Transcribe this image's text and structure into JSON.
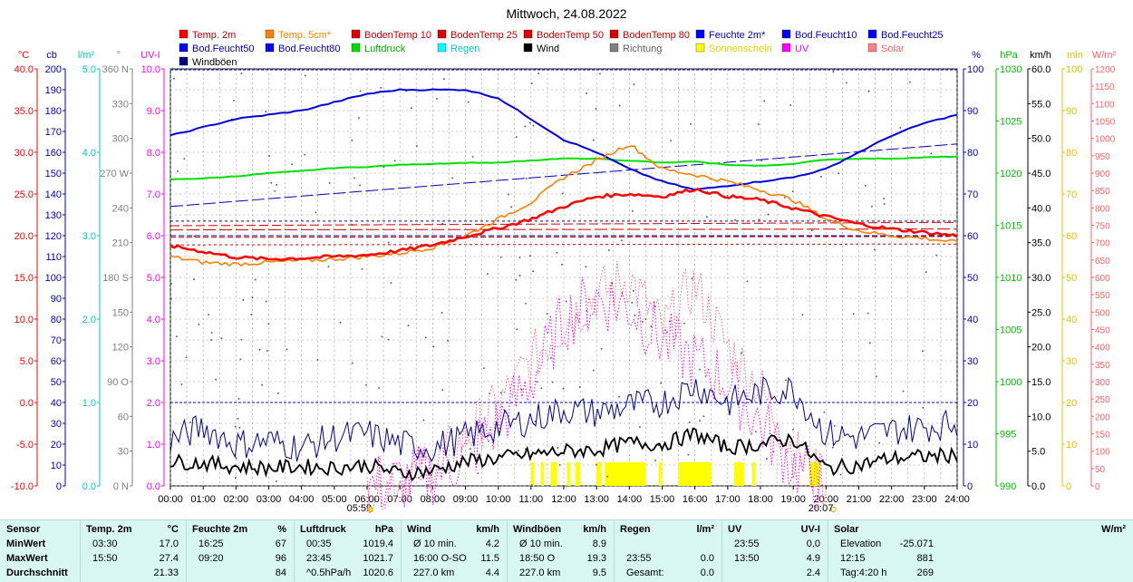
{
  "chart_data": {
    "type": "line",
    "title": "Mittwoch, 24.08.2022",
    "x_ticks": [
      "00:00",
      "01:00",
      "02:00",
      "03:00",
      "04:00",
      "05:00",
      "06:00",
      "07:00",
      "08:00",
      "09:00",
      "10:00",
      "11:00",
      "12:00",
      "13:00",
      "14:00",
      "15:00",
      "16:00",
      "17:00",
      "18:00",
      "19:00",
      "20:00",
      "21:00",
      "22:00",
      "23:00",
      "24:00"
    ],
    "sunrise": "05:59",
    "sunset": "20:07",
    "grid": true,
    "legend": [
      {
        "name": "Temp. 2m",
        "color": "#ff0000"
      },
      {
        "name": "Temp. 5cm*",
        "color": "#ff8000"
      },
      {
        "name": "BodenTemp 10",
        "color": "#e00000"
      },
      {
        "name": "BodenTemp 25",
        "color": "#e00000"
      },
      {
        "name": "BodenTemp 50",
        "color": "#e00000"
      },
      {
        "name": "BodenTemp 80",
        "color": "#e00000"
      },
      {
        "name": "Feuchte 2m*",
        "color": "#0000ff"
      },
      {
        "name": "Bod.Feucht10",
        "color": "#0000ff"
      },
      {
        "name": "Bod.Feucht25",
        "color": "#0000ff"
      },
      {
        "name": "Bod.Feucht50",
        "color": "#0000ff"
      },
      {
        "name": "Bod.Feucht80",
        "color": "#0000ff"
      },
      {
        "name": "Luftdruck",
        "color": "#00e000"
      },
      {
        "name": "Regen",
        "color": "#00ffff"
      },
      {
        "name": "Wind",
        "color": "#000000"
      },
      {
        "name": "Richtung",
        "color": "#808080"
      },
      {
        "name": "Sonnenschein",
        "color": "#ffff00"
      },
      {
        "name": "UV",
        "color": "#ff00ff"
      },
      {
        "name": "Solar",
        "color": "#ff8080"
      },
      {
        "name": "Windböen",
        "color": "#000080"
      }
    ],
    "axes_left": [
      {
        "unit": "°C",
        "color": "#ff0000",
        "ticks": [
          "40.0",
          "35.0",
          "30.0",
          "25.0",
          "20.0",
          "15.0",
          "10.0",
          "5.0",
          "0.0",
          "-5.0",
          "-10.0"
        ]
      },
      {
        "unit": "cb",
        "color": "#0000c0",
        "ticks": [
          "200",
          "190",
          "180",
          "170",
          "160",
          "150",
          "140",
          "130",
          "120",
          "110",
          "100",
          "90",
          "80",
          "70",
          "60",
          "50",
          "40",
          "30",
          "20",
          "10",
          "0"
        ]
      },
      {
        "unit": "l/m²",
        "color": "#00c8c8",
        "ticks": [
          "5.0",
          "4.0",
          "3.0",
          "2.0",
          "1.0",
          "0.0"
        ]
      },
      {
        "unit": "°",
        "color": "#808080",
        "ticks": [
          "360 N",
          "330",
          "300",
          "270 W",
          "240",
          "210",
          "180 S",
          "150",
          "120",
          "90  O",
          "60",
          "30",
          "0  N"
        ]
      },
      {
        "unit": "UV-I",
        "color": "#ff00ff",
        "ticks": [
          "10.0",
          "9.0",
          "8.0",
          "7.0",
          "6.0",
          "5.0",
          "4.0",
          "3.0",
          "2.0",
          "1.0",
          "0.0"
        ]
      }
    ],
    "axes_right": [
      {
        "unit": "%",
        "color": "#0000c0",
        "ticks": [
          "100",
          "90",
          "80",
          "70",
          "60",
          "50",
          "40",
          "30",
          "20",
          "10",
          "0"
        ]
      },
      {
        "unit": "hPa",
        "color": "#00c000",
        "ticks": [
          "1030",
          "1025",
          "1020",
          "1015",
          "1010",
          "1005",
          "1000",
          "995",
          "990"
        ]
      },
      {
        "unit": "km/h",
        "color": "#000000",
        "ticks": [
          "60.0",
          "55.0",
          "50.0",
          "45.0",
          "40.0",
          "35.0",
          "30.0",
          "25.0",
          "20.0",
          "15.0",
          "10.0",
          "5.0",
          "0.0"
        ]
      },
      {
        "unit": "min",
        "color": "#e0c000",
        "ticks": [
          "100",
          "90",
          "80",
          "70",
          "60",
          "50",
          "40",
          "30",
          "20",
          "10",
          "0"
        ]
      },
      {
        "unit": "W/m²",
        "color": "#ff6060",
        "ticks": [
          "1200",
          "1150",
          "1100",
          "1050",
          "1000",
          "950",
          "900",
          "850",
          "800",
          "750",
          "700",
          "650",
          "600",
          "550",
          "500",
          "450",
          "400",
          "350",
          "300",
          "250",
          "200",
          "150",
          "100",
          "50",
          "0"
        ]
      }
    ],
    "units": {
      "temp_range": [
        -10,
        40
      ],
      "humidity_range": [
        0,
        100
      ],
      "pressure_range": [
        990,
        1030
      ],
      "wind_range": [
        0,
        60
      ],
      "uv_range": [
        0,
        10
      ]
    },
    "series": [
      {
        "name": "Temp. 2m",
        "unit": "°C",
        "x": [
          0,
          1,
          2,
          3,
          4,
          5,
          6,
          7,
          8,
          9,
          10,
          11,
          12,
          13,
          14,
          15,
          16,
          17,
          18,
          19,
          20,
          21,
          22,
          23,
          24
        ],
        "values": [
          18.8,
          18.1,
          17.4,
          17.2,
          17.3,
          17.5,
          17.7,
          18.2,
          18.9,
          19.9,
          20.9,
          22.0,
          23.5,
          24.7,
          25.0,
          24.7,
          25.6,
          24.7,
          24.3,
          23.3,
          22.3,
          21.4,
          20.8,
          20.4,
          20.0
        ]
      },
      {
        "name": "Temp. 5cm*",
        "unit": "°C",
        "x": [
          0,
          1,
          2,
          3,
          4,
          5,
          6,
          7,
          8,
          9,
          10,
          11,
          12,
          13,
          14,
          15,
          16,
          17,
          18,
          19,
          20,
          21,
          22,
          23,
          24
        ],
        "values": [
          17.5,
          16.8,
          16.6,
          16.8,
          17.0,
          17.2,
          17.5,
          17.9,
          18.6,
          20.0,
          22.0,
          24.0,
          27.0,
          29.0,
          31.0,
          28.0,
          27.3,
          26.5,
          25.5,
          24.3,
          22.0,
          20.6,
          20.0,
          19.7,
          19.2
        ]
      },
      {
        "name": "Feuchte 2m*",
        "unit": "%",
        "x": [
          0,
          1,
          2,
          3,
          4,
          5,
          6,
          7,
          8,
          9,
          10,
          11,
          12,
          13,
          14,
          15,
          16,
          17,
          18,
          19,
          20,
          21,
          22,
          23,
          24
        ],
        "values": [
          84,
          86,
          88,
          89,
          90,
          92,
          94,
          95,
          95,
          95,
          93,
          88,
          83,
          80,
          76,
          73,
          71,
          72,
          73,
          74,
          76,
          80,
          84,
          87,
          89
        ]
      },
      {
        "name": "Luftdruck",
        "unit": "hPa",
        "x": [
          0,
          1,
          2,
          3,
          4,
          5,
          6,
          7,
          8,
          9,
          10,
          11,
          12,
          13,
          14,
          15,
          16,
          17,
          18,
          19,
          20,
          21,
          22,
          23,
          24
        ],
        "values": [
          1019.4,
          1019.5,
          1019.7,
          1020.0,
          1020.2,
          1020.5,
          1020.6,
          1020.8,
          1020.9,
          1021.0,
          1021.0,
          1021.2,
          1021.4,
          1021.4,
          1021.2,
          1021.0,
          1021.1,
          1020.8,
          1020.7,
          1020.9,
          1021.3,
          1021.4,
          1021.4,
          1021.5,
          1021.6
        ]
      },
      {
        "name": "Wind",
        "unit": "km/h",
        "x": [
          0,
          1,
          2,
          3,
          4,
          5,
          6,
          7,
          8,
          9,
          10,
          11,
          12,
          13,
          14,
          15,
          16,
          17,
          18,
          19,
          20,
          21,
          22,
          23,
          24
        ],
        "values": [
          3.5,
          3.3,
          2.8,
          2.6,
          2.8,
          2.6,
          3.0,
          1.8,
          2.2,
          3.5,
          4.0,
          4.5,
          5.0,
          5.2,
          6.2,
          6.0,
          7.5,
          5.5,
          6.0,
          6.8,
          2.5,
          3.0,
          4.0,
          4.2,
          4.5
        ]
      },
      {
        "name": "Windböen",
        "unit": "km/h",
        "x": [
          0,
          1,
          2,
          3,
          4,
          5,
          6,
          7,
          8,
          9,
          10,
          11,
          12,
          13,
          14,
          15,
          16,
          17,
          18,
          19,
          20,
          21,
          22,
          23,
          24
        ],
        "values": [
          6.5,
          8.5,
          6.0,
          6.5,
          5.5,
          7.0,
          7.5,
          6.0,
          5.5,
          7.0,
          8.5,
          9.5,
          11.0,
          10.5,
          11.5,
          12.0,
          14.5,
          12.0,
          13.5,
          14.0,
          7.5,
          7.0,
          8.0,
          8.5,
          9.0
        ]
      },
      {
        "name": "UV",
        "unit": "UV-I",
        "x": [
          6,
          7,
          8,
          9,
          10,
          11,
          12,
          13,
          14,
          15,
          16,
          17,
          18,
          19,
          20
        ],
        "values": [
          0,
          0.1,
          0.3,
          0.7,
          1.5,
          2.5,
          4.0,
          4.5,
          4.3,
          3.5,
          3.0,
          2.5,
          1.5,
          0.5,
          0
        ]
      },
      {
        "name": "Solar",
        "unit": "W/m²",
        "x": [
          6,
          7,
          8,
          9,
          10,
          11,
          12,
          13,
          14,
          15,
          16,
          17,
          18,
          19,
          20
        ],
        "values": [
          0,
          20,
          60,
          140,
          230,
          360,
          470,
          550,
          600,
          450,
          580,
          400,
          280,
          100,
          0
        ]
      },
      {
        "name": "BodenTemp 10",
        "unit": "°C",
        "x": [
          0,
          24
        ],
        "values": [
          21.2,
          21.6
        ]
      },
      {
        "name": "BodenTemp 25",
        "unit": "°C",
        "x": [
          0,
          24
        ],
        "values": [
          20.7,
          20.8
        ]
      },
      {
        "name": "BodenTemp 50",
        "unit": "°C",
        "x": [
          0,
          24
        ],
        "values": [
          19.8,
          19.9
        ]
      },
      {
        "name": "BodenTemp 80",
        "unit": "°C",
        "x": [
          0,
          24
        ],
        "values": [
          18.9,
          19.0
        ]
      },
      {
        "name": "Bod.Feucht10",
        "unit": "cb",
        "x": [
          0,
          24
        ],
        "values": [
          134,
          164
        ]
      },
      {
        "name": "Bod.Feucht25",
        "unit": "cb",
        "x": [
          0,
          24
        ],
        "values": [
          120,
          120
        ]
      },
      {
        "name": "Bod.Feucht50",
        "unit": "cb",
        "x": [
          0,
          24
        ],
        "values": [
          127,
          127
        ]
      },
      {
        "name": "Bod.Feucht80",
        "unit": "cb",
        "x": [
          0,
          24
        ],
        "values": [
          40,
          40
        ]
      }
    ],
    "sunshine_intervals": [
      [
        11.0,
        11.1
      ],
      [
        11.3,
        11.4
      ],
      [
        11.6,
        11.8
      ],
      [
        12.1,
        12.2
      ],
      [
        12.35,
        12.5
      ],
      [
        13.0,
        13.15
      ],
      [
        13.25,
        14.5
      ],
      [
        14.9,
        15.0
      ],
      [
        15.5,
        16.5
      ],
      [
        17.2,
        17.5
      ],
      [
        17.75,
        17.85
      ],
      [
        19.5,
        19.8
      ]
    ]
  },
  "stats": {
    "columns": [
      {
        "label": "Sensor",
        "unit": "",
        "rows": [
          [
            "MinWert",
            ""
          ],
          [
            "MaxWert",
            ""
          ],
          [
            "Durchschnitt",
            ""
          ]
        ]
      },
      {
        "label": "Temp. 2m",
        "unit": "°C",
        "rows": [
          [
            "03:30",
            "17.0"
          ],
          [
            "15:50",
            "27.4"
          ],
          [
            "",
            "21.33"
          ]
        ]
      },
      {
        "label": "Feuchte 2m",
        "unit": "%",
        "rows": [
          [
            "16:25",
            "67"
          ],
          [
            "09:20",
            "96"
          ],
          [
            "",
            "84"
          ]
        ]
      },
      {
        "label": "Luftdruck",
        "unit": "hPa",
        "rows": [
          [
            "00:35",
            "1019.4"
          ],
          [
            "23:45",
            "1021.7"
          ],
          [
            "^0.5hPa/h",
            "1020.6"
          ]
        ]
      },
      {
        "label": "Wind",
        "unit": "km/h",
        "rows": [
          [
            "Ø 10 min.",
            "4.2"
          ],
          [
            "16:00   O-SO",
            "11.5"
          ],
          [
            "227.0 km",
            "4.4"
          ]
        ]
      },
      {
        "label": "Windböen",
        "unit": "km/h",
        "rows": [
          [
            "Ø 10 min.",
            "8.9"
          ],
          [
            "18:50   O",
            "19.3"
          ],
          [
            "227.0 km",
            "9.5"
          ]
        ]
      },
      {
        "label": "Regen",
        "unit": "l/m²",
        "rows": [
          [
            "",
            ""
          ],
          [
            "23:55",
            "0.0"
          ],
          [
            "Gesamt:",
            "0.0"
          ]
        ]
      },
      {
        "label": "UV",
        "unit": "UV-I",
        "rows": [
          [
            "23:55",
            "0.0"
          ],
          [
            "13:50",
            "4.9"
          ],
          [
            "",
            "2.4"
          ]
        ]
      },
      {
        "label": "Solar",
        "unit": "W/m²",
        "rows": [
          [
            "Elevation",
            "-25.071"
          ],
          [
            "12:15",
            "881"
          ],
          [
            "Tag:4:20 h",
            "269"
          ]
        ]
      }
    ]
  }
}
